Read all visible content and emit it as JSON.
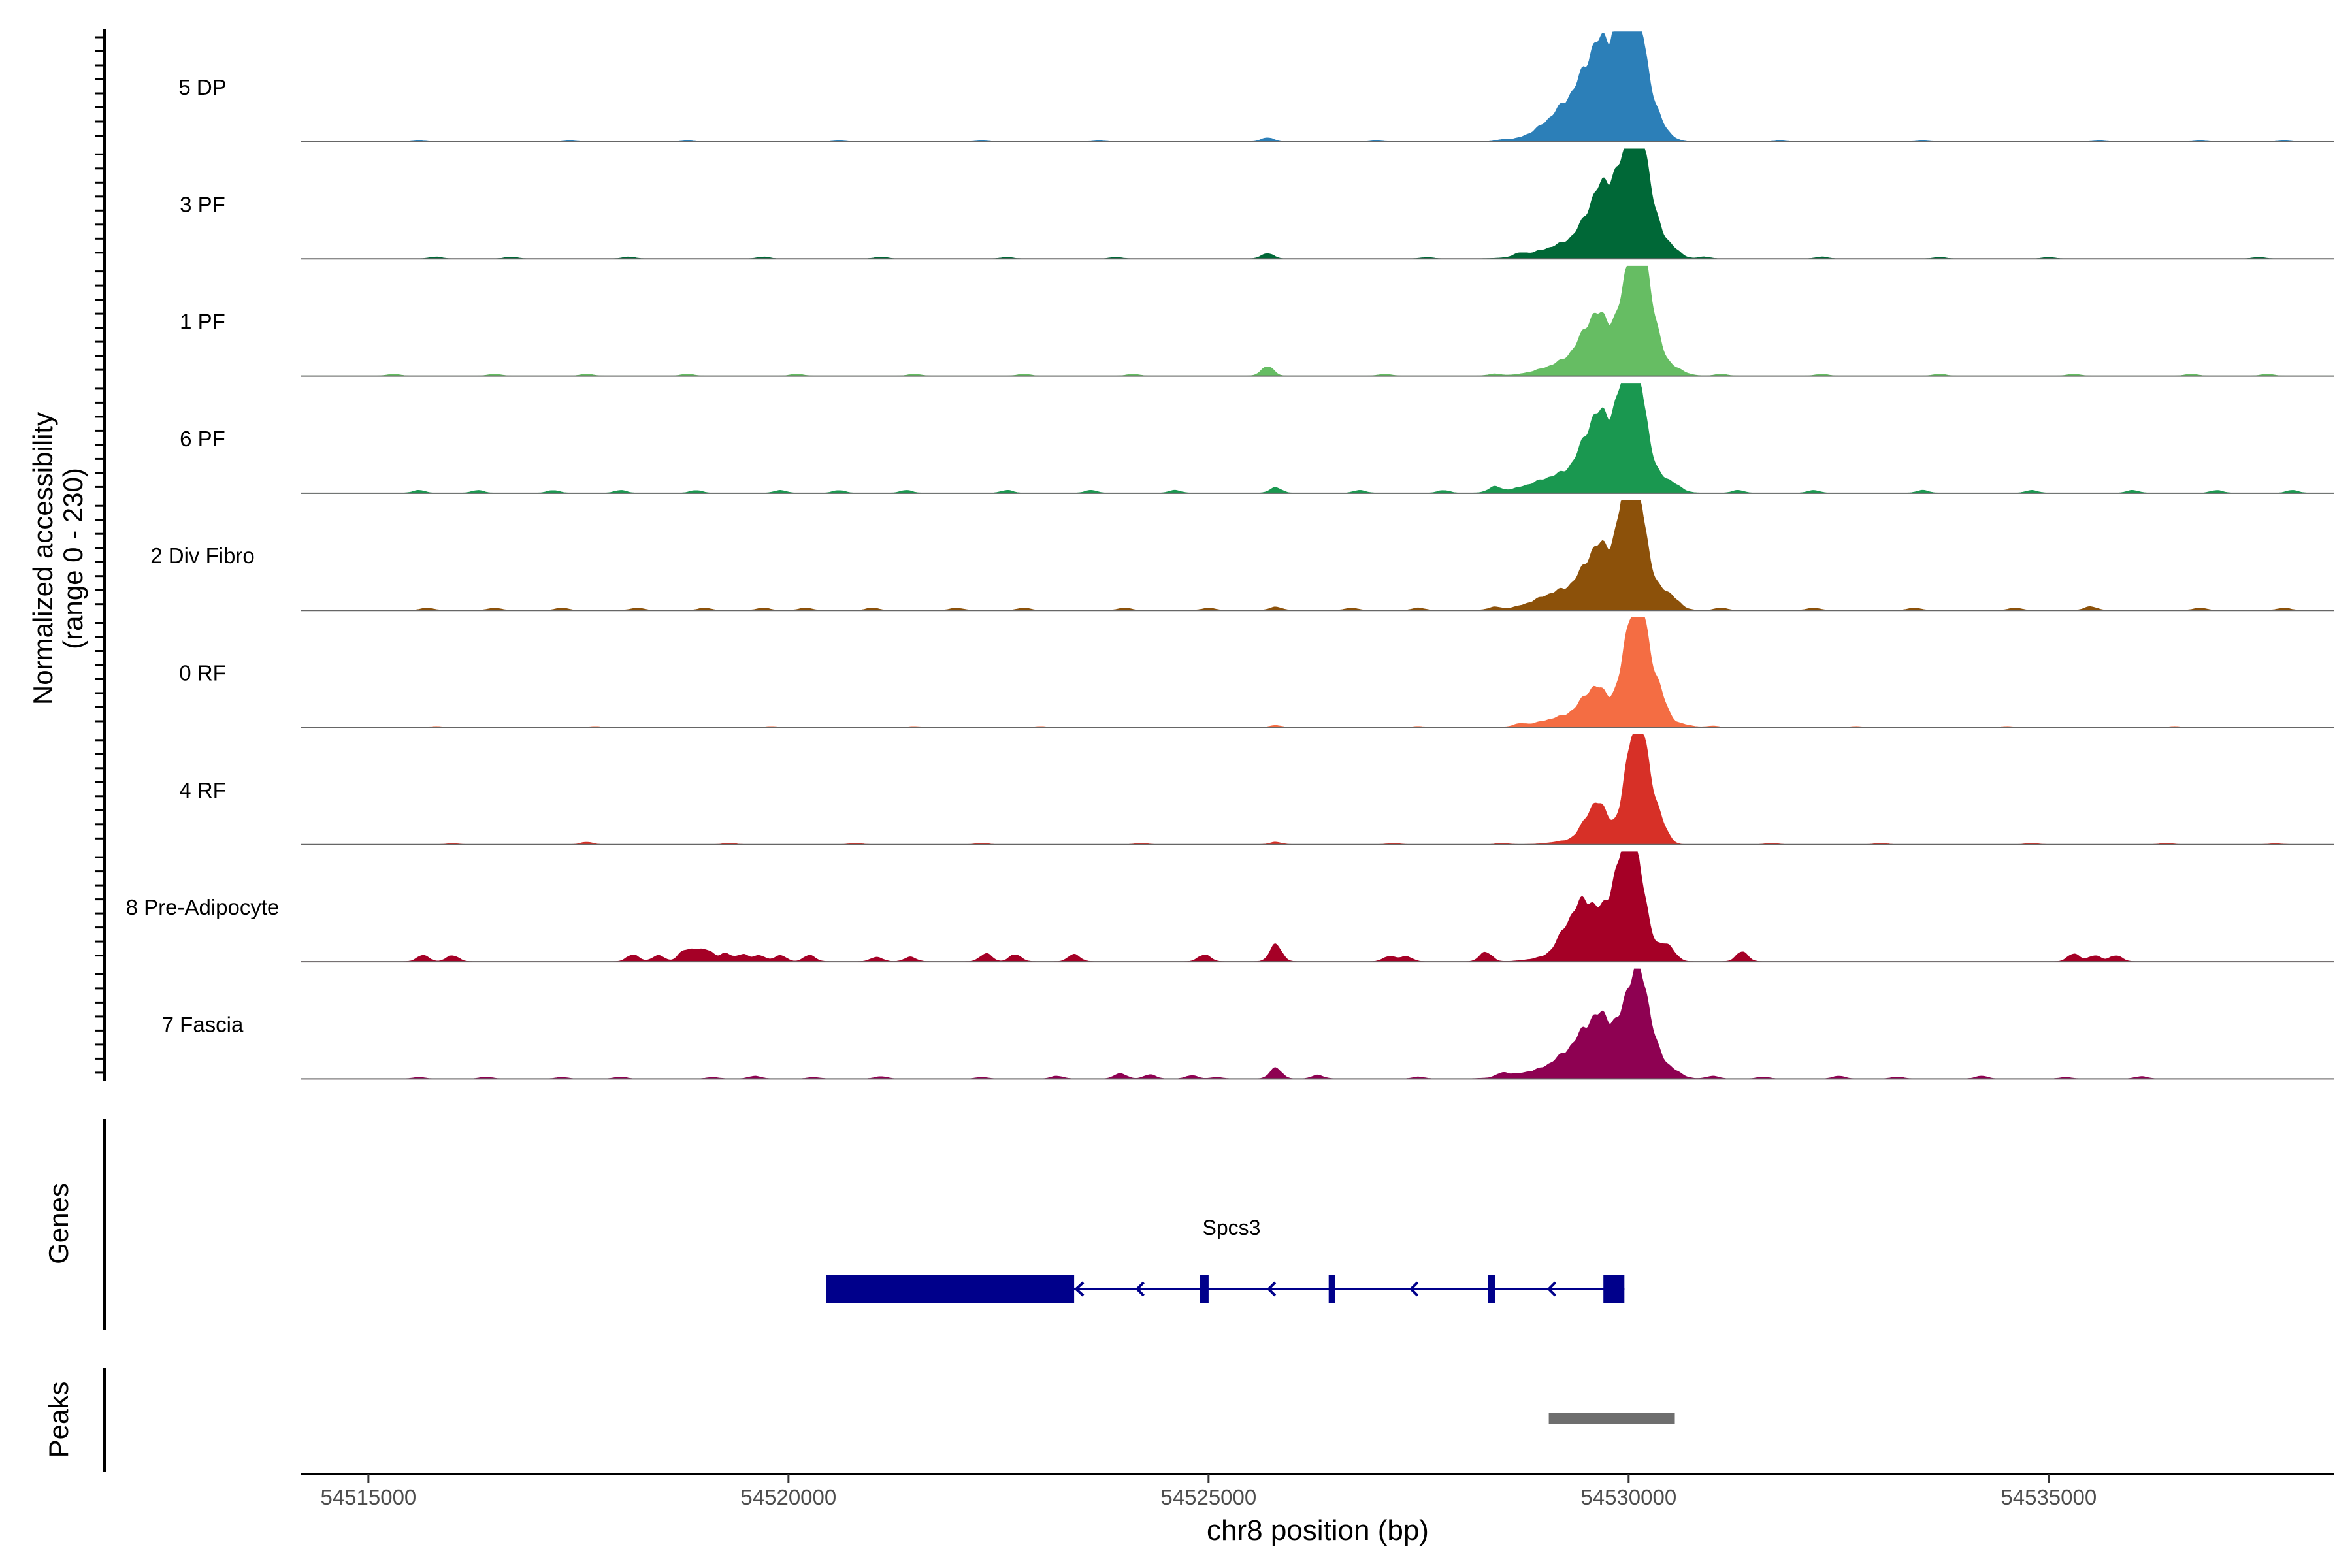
{
  "chart_data": {
    "type": "area",
    "region": "chr8",
    "xlabel": "chr8 position (bp)",
    "coverage_ylabel": [
      "Normalized accessibility",
      "(range 0 - 230)"
    ],
    "ylim": [
      0,
      230
    ],
    "xlim": [
      54514200,
      54538400
    ],
    "x_ticks": [
      54515000,
      54520000,
      54525000,
      54530000,
      54535000
    ],
    "x_tick_labels": [
      "54515000",
      "54520000",
      "54525000",
      "54530000",
      "54535000"
    ],
    "tracks": [
      {
        "name": "5 DP",
        "color": "#2c7fb8",
        "bg": [
          [
            54515600,
            2
          ],
          [
            54517400,
            2
          ],
          [
            54518800,
            2
          ],
          [
            54520600,
            2
          ],
          [
            54522300,
            2
          ],
          [
            54523700,
            2
          ],
          [
            54525700,
            9
          ],
          [
            54527000,
            2
          ],
          [
            54528500,
            3
          ],
          [
            54531800,
            2
          ],
          [
            54533500,
            2
          ],
          [
            54535600,
            2
          ],
          [
            54536800,
            2
          ],
          [
            54537800,
            2
          ]
        ],
        "peaks": [
          [
            54529450,
            105,
            300
          ],
          [
            54529600,
            62,
            140
          ],
          [
            54529800,
            120,
            180
          ],
          [
            54530000,
            210,
            120
          ],
          [
            54530150,
            135,
            110
          ],
          [
            54530350,
            38,
            120
          ],
          [
            54529000,
            10,
            250
          ]
        ]
      },
      {
        "name": "3 PF",
        "color": "#006837",
        "bg": [
          [
            54515800,
            4
          ],
          [
            54516700,
            4
          ],
          [
            54518100,
            4
          ],
          [
            54519700,
            4
          ],
          [
            54521100,
            4
          ],
          [
            54522600,
            3
          ],
          [
            54523900,
            3
          ],
          [
            54525700,
            12
          ],
          [
            54527600,
            3
          ],
          [
            54528700,
            6
          ],
          [
            54530900,
            4
          ],
          [
            54532300,
            4
          ],
          [
            54533700,
            3
          ],
          [
            54535000,
            3
          ],
          [
            54537500,
            3
          ]
        ],
        "peaks": [
          [
            54529350,
            32,
            250
          ],
          [
            54529650,
            100,
            170
          ],
          [
            54529850,
            95,
            170
          ],
          [
            54530050,
            190,
            120
          ],
          [
            54530200,
            140,
            110
          ],
          [
            54530450,
            35,
            120
          ],
          [
            54528950,
            10,
            250
          ]
        ]
      },
      {
        "name": "1 PF",
        "color": "#66bd63",
        "bg": [
          [
            54515300,
            4
          ],
          [
            54516500,
            4
          ],
          [
            54517600,
            4
          ],
          [
            54518800,
            4
          ],
          [
            54520100,
            4
          ],
          [
            54521500,
            4
          ],
          [
            54522800,
            4
          ],
          [
            54524100,
            4
          ],
          [
            54525700,
            22
          ],
          [
            54527100,
            4
          ],
          [
            54528400,
            4
          ],
          [
            54531100,
            4
          ],
          [
            54532300,
            4
          ],
          [
            54533700,
            4
          ],
          [
            54535300,
            4
          ],
          [
            54536700,
            4
          ],
          [
            54537600,
            4
          ]
        ],
        "peaks": [
          [
            54529450,
            40,
            260
          ],
          [
            54529600,
            85,
            150
          ],
          [
            54529850,
            60,
            170
          ],
          [
            54530050,
            225,
            110
          ],
          [
            54530200,
            160,
            100
          ],
          [
            54530350,
            40,
            110
          ],
          [
            54530550,
            14,
            120
          ],
          [
            54529050,
            10,
            250
          ]
        ]
      },
      {
        "name": "6 PF",
        "color": "#1a9850",
        "bg": [
          [
            54515600,
            6
          ],
          [
            54516300,
            6
          ],
          [
            54517200,
            6
          ],
          [
            54518000,
            6
          ],
          [
            54518900,
            6
          ],
          [
            54519900,
            6
          ],
          [
            54520600,
            6
          ],
          [
            54521400,
            6
          ],
          [
            54522600,
            6
          ],
          [
            54523600,
            6
          ],
          [
            54524600,
            6
          ],
          [
            54525800,
            12
          ],
          [
            54526800,
            6
          ],
          [
            54527800,
            6
          ],
          [
            54528400,
            12
          ],
          [
            54531300,
            6
          ],
          [
            54532200,
            6
          ],
          [
            54533500,
            6
          ],
          [
            54534800,
            6
          ],
          [
            54536000,
            6
          ],
          [
            54537000,
            6
          ],
          [
            54537900,
            6
          ]
        ],
        "peaks": [
          [
            54529250,
            40,
            280
          ],
          [
            54529600,
            125,
            160
          ],
          [
            54529800,
            80,
            150
          ],
          [
            54530000,
            215,
            110
          ],
          [
            54530150,
            150,
            110
          ],
          [
            54530450,
            30,
            130
          ],
          [
            54528800,
            8,
            250
          ]
        ]
      },
      {
        "name": "2 Div Fibro",
        "color": "#8c510a",
        "bg": [
          [
            54515700,
            5
          ],
          [
            54516500,
            5
          ],
          [
            54517300,
            5
          ],
          [
            54518200,
            5
          ],
          [
            54519000,
            5
          ],
          [
            54519700,
            5
          ],
          [
            54520200,
            5
          ],
          [
            54521000,
            5
          ],
          [
            54522000,
            5
          ],
          [
            54522800,
            5
          ],
          [
            54524000,
            5
          ],
          [
            54525000,
            5
          ],
          [
            54525800,
            7
          ],
          [
            54526700,
            5
          ],
          [
            54527500,
            5
          ],
          [
            54528400,
            6
          ],
          [
            54531100,
            5
          ],
          [
            54532200,
            5
          ],
          [
            54533400,
            5
          ],
          [
            54534600,
            5
          ],
          [
            54535500,
            8
          ],
          [
            54536800,
            5
          ],
          [
            54537800,
            5
          ]
        ],
        "peaks": [
          [
            54529250,
            40,
            260
          ],
          [
            54529600,
            95,
            160
          ],
          [
            54529800,
            75,
            150
          ],
          [
            54530000,
            235,
            100
          ],
          [
            54530150,
            160,
            110
          ],
          [
            54530450,
            40,
            120
          ],
          [
            54528900,
            8,
            250
          ]
        ]
      },
      {
        "name": "0 RF",
        "color": "#f46d43",
        "bg": [
          [
            54515800,
            2
          ],
          [
            54517700,
            2
          ],
          [
            54519800,
            2
          ],
          [
            54521500,
            2
          ],
          [
            54523000,
            2
          ],
          [
            54525800,
            4
          ],
          [
            54527500,
            2
          ],
          [
            54528700,
            5
          ],
          [
            54531000,
            3
          ],
          [
            54532700,
            2
          ],
          [
            54534500,
            2
          ],
          [
            54536500,
            2
          ]
        ],
        "peaks": [
          [
            54529300,
            25,
            300
          ],
          [
            54529600,
            70,
            150
          ],
          [
            54529850,
            25,
            150
          ],
          [
            54530050,
            220,
            110
          ],
          [
            54530200,
            150,
            110
          ],
          [
            54530400,
            45,
            80
          ],
          [
            54530600,
            8,
            120
          ]
        ]
      },
      {
        "name": "4 RF",
        "color": "#d73027",
        "bg": [
          [
            54516000,
            2
          ],
          [
            54517600,
            5
          ],
          [
            54519300,
            3
          ],
          [
            54520800,
            3
          ],
          [
            54522300,
            3
          ],
          [
            54524200,
            3
          ],
          [
            54525800,
            5
          ],
          [
            54527200,
            3
          ],
          [
            54528500,
            3
          ],
          [
            54531700,
            3
          ],
          [
            54533000,
            3
          ],
          [
            54534800,
            3
          ],
          [
            54536400,
            3
          ],
          [
            54537700,
            2
          ]
        ],
        "peaks": [
          [
            54529600,
            80,
            130
          ],
          [
            54529750,
            25,
            110
          ],
          [
            54530050,
            225,
            100
          ],
          [
            54530200,
            160,
            100
          ],
          [
            54530400,
            35,
            80
          ],
          [
            54529300,
            8,
            200
          ]
        ]
      },
      {
        "name": "8 Pre-Adipocyte",
        "color": "#a50026",
        "bg": [
          [
            54515650,
            14
          ],
          [
            54516000,
            14
          ],
          [
            54518150,
            16
          ],
          [
            54518450,
            14
          ],
          [
            54518750,
            22
          ],
          [
            54518900,
            26
          ],
          [
            54519050,
            22
          ],
          [
            54519250,
            18
          ],
          [
            54519450,
            16
          ],
          [
            54519650,
            14
          ],
          [
            54519900,
            14
          ],
          [
            54520250,
            14
          ],
          [
            54521050,
            10
          ],
          [
            54521450,
            10
          ],
          [
            54522350,
            18
          ],
          [
            54522700,
            16
          ],
          [
            54523400,
            16
          ],
          [
            54524950,
            16
          ],
          [
            54525800,
            38
          ],
          [
            54527150,
            12
          ],
          [
            54527350,
            12
          ],
          [
            54528300,
            22
          ],
          [
            54531350,
            22
          ],
          [
            54535300,
            18
          ],
          [
            54535550,
            14
          ],
          [
            54535800,
            14
          ]
        ],
        "peaks": [
          [
            54529300,
            75,
            130
          ],
          [
            54529500,
            105,
            110
          ],
          [
            54529700,
            70,
            110
          ],
          [
            54529850,
            120,
            100
          ],
          [
            54530000,
            210,
            90
          ],
          [
            54530150,
            140,
            100
          ],
          [
            54530450,
            40,
            90
          ],
          [
            54529050,
            10,
            200
          ]
        ]
      },
      {
        "name": "7 Fascia",
        "color": "#8e0152",
        "bg": [
          [
            54515600,
            3
          ],
          [
            54516400,
            4
          ],
          [
            54517300,
            3
          ],
          [
            54518000,
            4
          ],
          [
            54519100,
            3
          ],
          [
            54519600,
            6
          ],
          [
            54520300,
            3
          ],
          [
            54521100,
            5
          ],
          [
            54522300,
            3
          ],
          [
            54523200,
            6
          ],
          [
            54523950,
            12
          ],
          [
            54524300,
            9
          ],
          [
            54524800,
            7
          ],
          [
            54525100,
            3
          ],
          [
            54525800,
            24
          ],
          [
            54526300,
            8
          ],
          [
            54527500,
            4
          ],
          [
            54528500,
            8
          ],
          [
            54531000,
            6
          ],
          [
            54531600,
            4
          ],
          [
            54532500,
            6
          ],
          [
            54533200,
            4
          ],
          [
            54534200,
            6
          ],
          [
            54535200,
            3
          ],
          [
            54536100,
            5
          ]
        ],
        "peaks": [
          [
            54528800,
            12,
            250
          ],
          [
            54529300,
            50,
            220
          ],
          [
            54529600,
            100,
            170
          ],
          [
            54529800,
            65,
            140
          ],
          [
            54530050,
            180,
            110
          ],
          [
            54530200,
            125,
            110
          ],
          [
            54530450,
            28,
            130
          ]
        ]
      }
    ],
    "genes_ylabel": "Genes",
    "gene": {
      "name": "Spcs3",
      "strand": "-",
      "start": 54520450,
      "end": 54529950,
      "exons": [
        [
          54520450,
          54523400
        ],
        [
          54524900,
          54525000
        ],
        [
          54526430,
          54526490
        ],
        [
          54528330,
          54528400
        ],
        [
          54529700,
          54529950
        ]
      ]
    },
    "peaks_ylabel": "Peaks",
    "peak_regions": [
      [
        54529050,
        54530550
      ]
    ],
    "colors": {
      "gene": "#00008b",
      "peak": "#6e6e6e",
      "baseline": "#666666"
    }
  }
}
